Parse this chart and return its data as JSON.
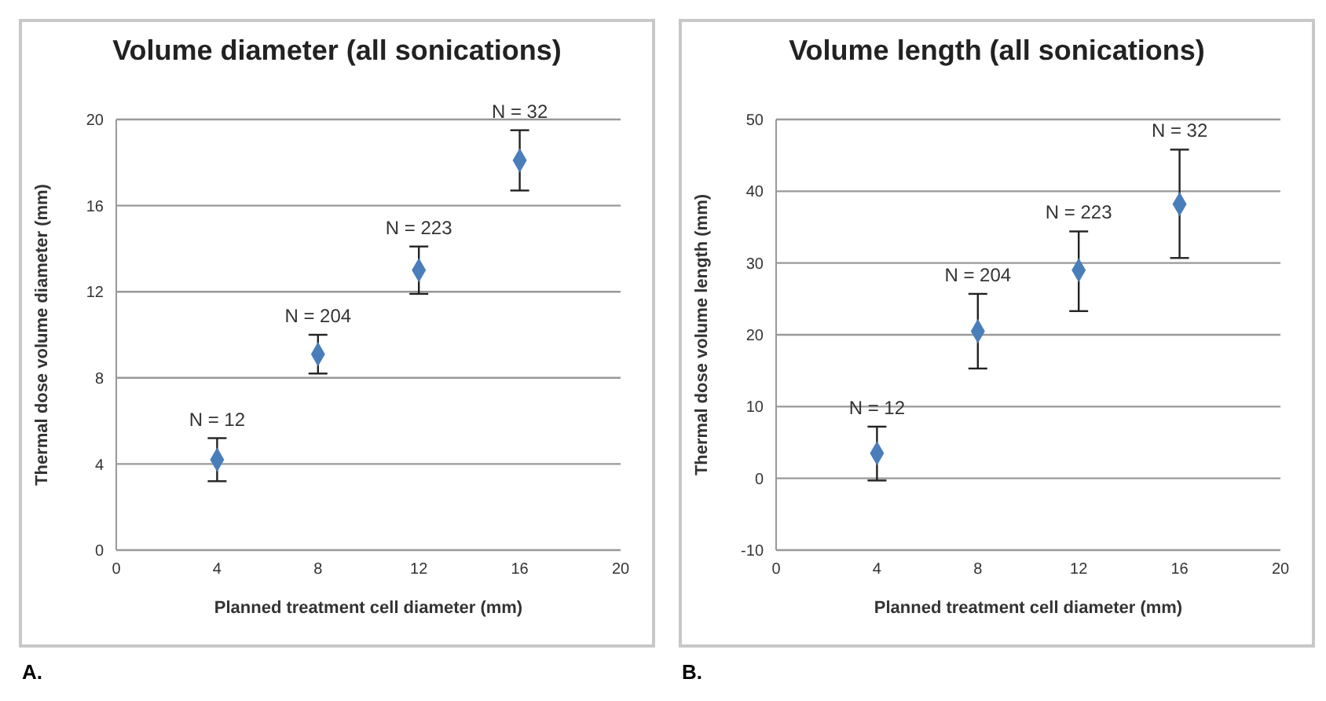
{
  "chart_data": [
    {
      "type": "scatter",
      "title": "Volume diameter (all sonications)",
      "xlabel": "Planned treatment cell diameter (mm)",
      "ylabel": "Thermal dose volume diameter (mm)",
      "x": [
        4,
        8,
        12,
        16
      ],
      "series": [
        {
          "color": "#4a7ebb",
          "values": [
            4.2,
            9.1,
            13.0,
            18.1
          ],
          "errors": [
            [
              3.2,
              5.2
            ],
            [
              8.2,
              10.0
            ],
            [
              11.9,
              14.1
            ],
            [
              16.7,
              19.5
            ]
          ]
        }
      ],
      "xlim": [
        0,
        20
      ],
      "xticks": [
        0,
        4,
        8,
        12,
        16,
        20
      ],
      "ylim": [
        0,
        20
      ],
      "yticks": [
        0,
        4,
        8,
        12,
        16,
        20
      ],
      "grid": "y",
      "marker": "diamond",
      "legend": false,
      "annotations": [
        {
          "text": "N = 12",
          "x": 4,
          "y": 5.2
        },
        {
          "text": "N = 204",
          "x": 8,
          "y": 10.0
        },
        {
          "text": "N = 223",
          "x": 12,
          "y": 14.1
        },
        {
          "text": "N = 32",
          "x": 16,
          "y": 19.5
        },
        "A."
      ]
    },
    {
      "type": "scatter",
      "title": "Volume length (all sonications)",
      "xlabel": "Planned treatment cell diameter (mm)",
      "ylabel": "Thermal dose volume length (mm)",
      "x": [
        4,
        8,
        12,
        16
      ],
      "series": [
        {
          "color": "#4a7ebb",
          "values": [
            3.5,
            20.5,
            29.0,
            38.2
          ],
          "errors": [
            [
              -0.3,
              7.2
            ],
            [
              15.3,
              25.7
            ],
            [
              23.3,
              34.4
            ],
            [
              30.7,
              45.8
            ]
          ]
        }
      ],
      "xlim": [
        0,
        20
      ],
      "xticks": [
        0,
        4,
        8,
        12,
        16,
        20
      ],
      "ylim": [
        -10,
        50
      ],
      "yticks": [
        -10,
        0,
        10,
        20,
        30,
        40,
        50
      ],
      "grid": "y",
      "marker": "diamond",
      "legend": false,
      "annotations": [
        {
          "text": "N = 12",
          "x": 4,
          "y": 7.2
        },
        {
          "text": "N = 204",
          "x": 8,
          "y": 25.7
        },
        {
          "text": "N = 223",
          "x": 12,
          "y": 34.4
        },
        {
          "text": "N = 32",
          "x": 16,
          "y": 45.8
        },
        "B."
      ]
    }
  ]
}
